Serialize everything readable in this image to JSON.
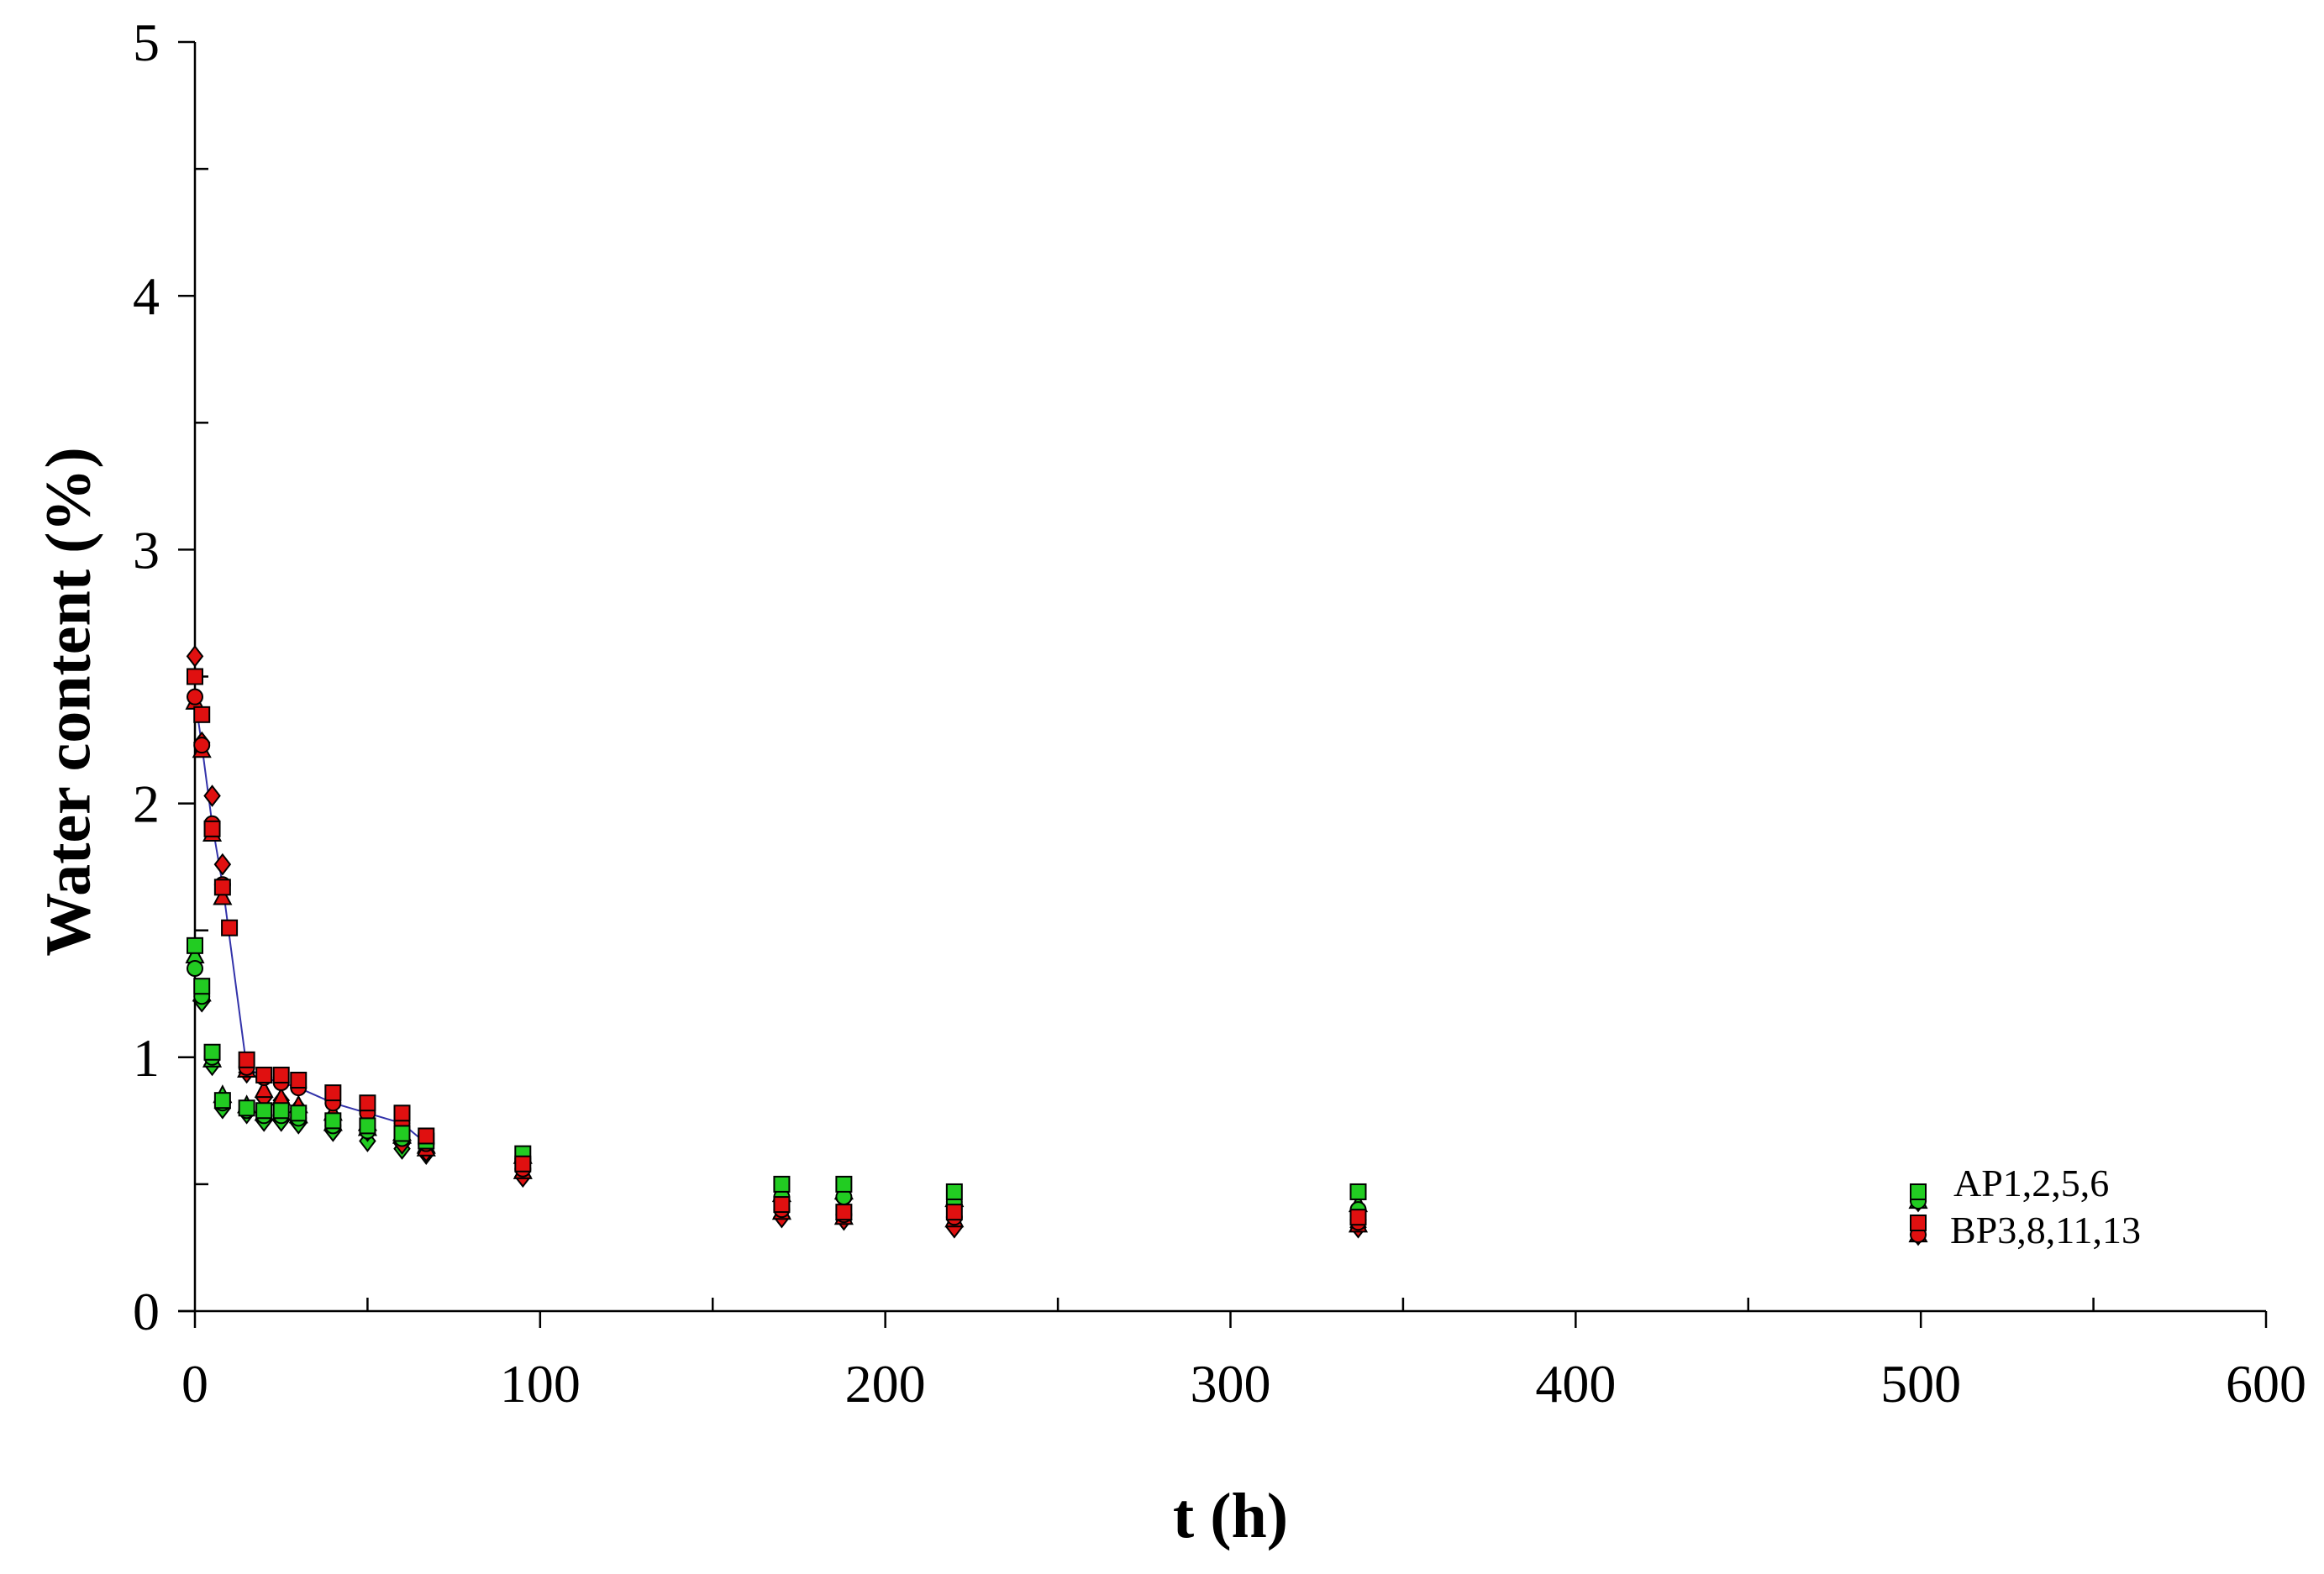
{
  "chart_data": {
    "type": "scatter",
    "xlabel": "t (h)",
    "ylabel": "Water content (%)",
    "xlim": [
      0,
      600
    ],
    "ylim": [
      0,
      5
    ],
    "x_ticks": [
      0,
      100,
      200,
      300,
      400,
      500,
      600
    ],
    "x_tick_labels": [
      "0",
      "100",
      "200",
      "300",
      "400",
      "500",
      "600"
    ],
    "y_ticks": [
      0,
      1,
      2,
      3,
      4,
      5
    ],
    "y_tick_labels": [
      "0",
      "1",
      "2",
      "3",
      "4",
      "5"
    ],
    "grid": false,
    "legend_position": "bottom-right",
    "legend": [
      "AP1,2,5,6",
      "BP3,8,11,13"
    ],
    "colors": {
      "AP": "#22cc22",
      "BP": "#e01010",
      "line": "#3333aa"
    },
    "series": [
      {
        "group": "AP",
        "marker": "square",
        "x": [
          0,
          2,
          5,
          8,
          15,
          20,
          25,
          30,
          40,
          50,
          60,
          67,
          95,
          170,
          188,
          220,
          337
        ],
        "y": [
          1.44,
          1.28,
          1.02,
          0.83,
          0.8,
          0.79,
          0.79,
          0.78,
          0.75,
          0.73,
          0.7,
          0.67,
          0.62,
          0.5,
          0.5,
          0.47,
          0.47
        ]
      },
      {
        "group": "AP",
        "marker": "circle",
        "x": [
          0,
          2,
          5,
          8,
          15,
          20,
          25,
          30,
          40,
          50,
          60,
          67,
          95,
          170,
          188,
          220,
          337
        ],
        "y": [
          1.35,
          1.24,
          1.0,
          0.82,
          0.79,
          0.77,
          0.77,
          0.76,
          0.73,
          0.71,
          0.68,
          0.66,
          0.6,
          0.45,
          0.45,
          0.43,
          0.4
        ]
      },
      {
        "group": "AP",
        "marker": "triangle",
        "x": [
          0,
          2,
          5,
          8,
          15,
          20,
          25,
          30,
          40,
          50,
          60,
          67,
          95,
          170,
          188,
          220,
          337
        ],
        "y": [
          1.4,
          1.25,
          0.99,
          0.85,
          0.81,
          0.78,
          0.78,
          0.77,
          0.74,
          0.72,
          0.69,
          0.65,
          0.61,
          0.46,
          0.47,
          0.44,
          0.42
        ]
      },
      {
        "group": "AP",
        "marker": "diamond",
        "x": [
          0,
          2,
          5,
          8,
          15,
          20,
          25,
          30,
          40,
          50,
          60,
          67,
          95,
          170,
          188,
          220,
          337
        ],
        "y": [
          1.38,
          1.22,
          0.97,
          0.8,
          0.78,
          0.75,
          0.75,
          0.74,
          0.71,
          0.67,
          0.64,
          0.62,
          0.59,
          0.43,
          0.44,
          0.42,
          0.36
        ]
      },
      {
        "group": "BP",
        "marker": "square",
        "x": [
          0,
          2,
          5,
          8,
          10,
          15,
          20,
          25,
          30,
          40,
          50,
          60,
          67,
          95,
          170,
          188,
          220,
          337
        ],
        "y": [
          2.5,
          2.35,
          1.9,
          1.67,
          1.51,
          0.99,
          0.93,
          0.93,
          0.91,
          0.86,
          0.82,
          0.78,
          0.69,
          0.58,
          0.42,
          0.39,
          0.39,
          0.37
        ]
      },
      {
        "group": "BP",
        "marker": "circle",
        "x": [
          0,
          2,
          5,
          8,
          15,
          20,
          25,
          30,
          40,
          50,
          60,
          67,
          95,
          170,
          188,
          220,
          337
        ],
        "y": [
          2.42,
          2.23,
          1.92,
          1.68,
          0.96,
          0.92,
          0.9,
          0.88,
          0.82,
          0.78,
          0.74,
          0.66,
          0.56,
          0.4,
          0.38,
          0.37,
          0.35
        ]
      },
      {
        "group": "BP",
        "marker": "triangle",
        "x": [
          0,
          2,
          5,
          8,
          15,
          20,
          25,
          30,
          40,
          50,
          60,
          67,
          95,
          170,
          188,
          220,
          337
        ],
        "y": [
          2.4,
          2.21,
          1.88,
          1.63,
          0.95,
          0.87,
          0.84,
          0.81,
          0.78,
          0.74,
          0.7,
          0.64,
          0.55,
          0.39,
          0.37,
          0.36,
          0.34
        ]
      },
      {
        "group": "BP",
        "marker": "diamond",
        "x": [
          0,
          2,
          5,
          8,
          15,
          20,
          25,
          30,
          40,
          50,
          60,
          67,
          95,
          170,
          188,
          220,
          337
        ],
        "y": [
          2.58,
          2.24,
          2.03,
          1.76,
          0.94,
          0.84,
          0.83,
          0.8,
          0.76,
          0.71,
          0.66,
          0.63,
          0.53,
          0.37,
          0.36,
          0.33,
          0.33
        ]
      }
    ]
  }
}
